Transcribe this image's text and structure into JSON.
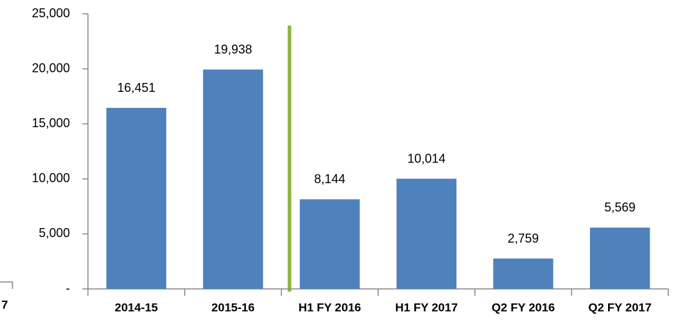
{
  "chart_data": {
    "type": "bar",
    "categories": [
      "2014-15",
      "2015-16",
      "H1 FY 2016",
      "H1 FY 2017",
      "Q2 FY 2016",
      "Q2 FY 2017"
    ],
    "values": [
      16451,
      19938,
      8144,
      10014,
      2759,
      5569
    ],
    "value_labels": [
      "16,451",
      "19,938",
      "8,144",
      "10,014",
      "2,759",
      "5,569"
    ],
    "color": "#4f81bd",
    "ylim": [
      0,
      25000
    ],
    "yticks": [
      {
        "value": 0,
        "label": "-"
      },
      {
        "value": 5000,
        "label": "5,000"
      },
      {
        "value": 10000,
        "label": "10,000"
      },
      {
        "value": 15000,
        "label": "15,000"
      },
      {
        "value": 20000,
        "label": "20,000"
      },
      {
        "value": 25000,
        "label": "25,000"
      }
    ],
    "grid": false,
    "side_label": "7"
  }
}
